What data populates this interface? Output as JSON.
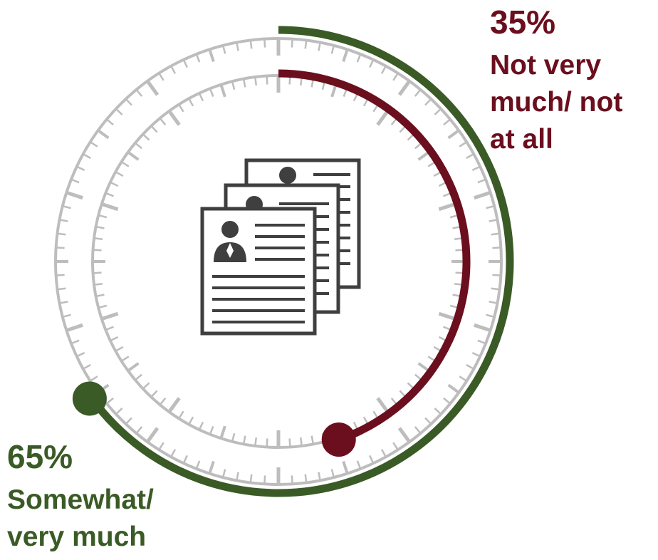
{
  "chart_data": {
    "type": "pie",
    "title": "",
    "colors": {
      "Somewhat/ very much": "#3a5a26",
      "Not very much/ not at all": "#6b0e1e",
      "tick": "#bdbdbd",
      "icon": "#3f3f3f"
    },
    "series": [
      {
        "name": "Somewhat/ very much",
        "value": 65,
        "label": "65%"
      },
      {
        "name": "Not very much/ not at all",
        "value": 35,
        "label": "35%"
      }
    ],
    "legend": "none",
    "center_icon": "resume-documents-icon"
  },
  "labels": {
    "somewhat": {
      "pct": "65%",
      "line1": "Somewhat/",
      "line2": "very much"
    },
    "not_very": {
      "pct": "35%",
      "line1": "Not very",
      "line2": "much/ not",
      "line3": "at all"
    }
  }
}
